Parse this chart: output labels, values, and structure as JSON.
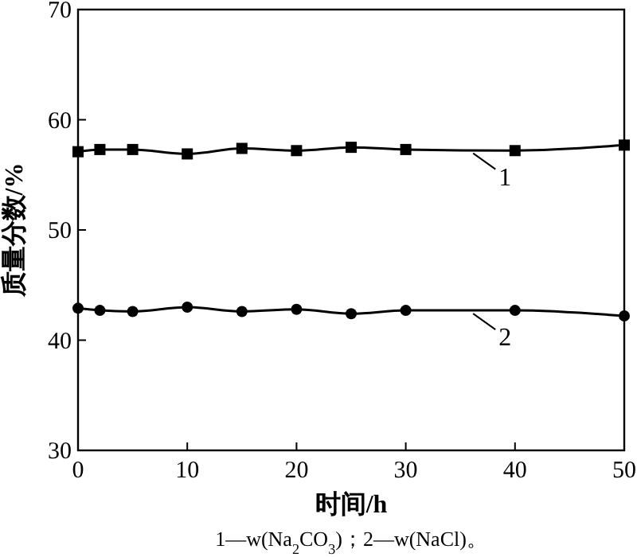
{
  "chart_data": {
    "type": "line",
    "xlabel": "时间/h",
    "ylabel": "质量分数/%",
    "x": [
      0,
      2,
      5,
      10,
      15,
      20,
      25,
      30,
      40,
      50
    ],
    "series": [
      {
        "name": "1",
        "color": "#000000",
        "marker": "square",
        "values": [
          57.1,
          57.3,
          57.3,
          56.9,
          57.4,
          57.2,
          57.5,
          57.3,
          57.2,
          57.7
        ]
      },
      {
        "name": "2",
        "color": "#000000",
        "marker": "circle",
        "values": [
          42.9,
          42.7,
          42.6,
          43.0,
          42.6,
          42.8,
          42.4,
          42.7,
          42.7,
          42.2
        ]
      }
    ],
    "xlim": [
      0,
      50
    ],
    "xticks": [
      0,
      10,
      20,
      30,
      40,
      50
    ],
    "ylim": [
      30,
      70
    ],
    "yticks": [
      30,
      40,
      50,
      60,
      70
    ],
    "grid": false,
    "legend": "right",
    "line_style": "solid",
    "annotations": [
      "1—w(Na$_{2}$CO$_{3}$)；2—w(NaCl)。"
    ]
  }
}
